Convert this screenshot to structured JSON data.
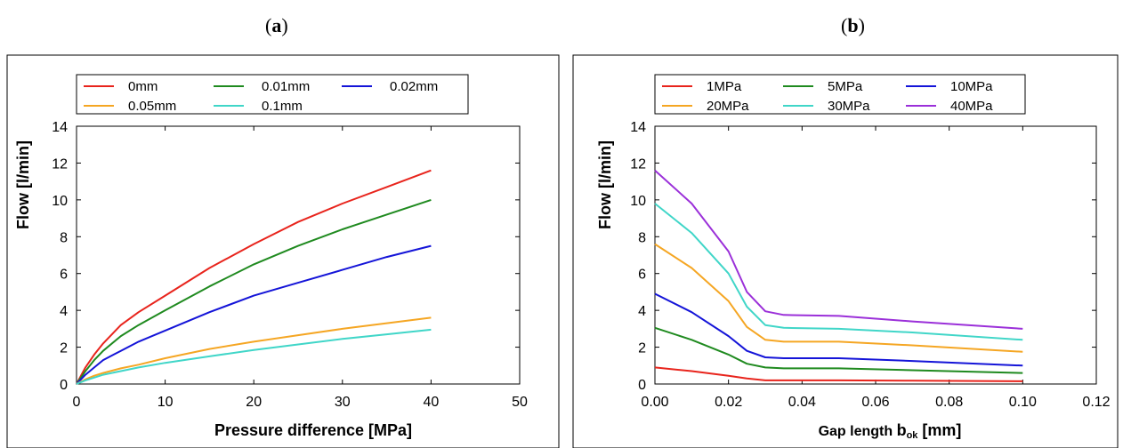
{
  "panels": {
    "a_open": "(",
    "a_letter": "a",
    "a_close": ")",
    "b_open": "(",
    "b_letter": "b",
    "b_close": ")"
  },
  "chart_data": [
    {
      "type": "line",
      "xlabel": "Pressure difference   [MPa]",
      "ylabel": "Flow   [l/min]",
      "xlim": [
        0,
        50
      ],
      "ylim": [
        0,
        14
      ],
      "xticks": [
        "0",
        "10",
        "20",
        "30",
        "40",
        "50"
      ],
      "yticks": [
        "0",
        "2",
        "4",
        "6",
        "8",
        "10",
        "12",
        "14"
      ],
      "grid": false,
      "legend_placement": "top",
      "series": [
        {
          "name": "0mm",
          "color": "#e8241c",
          "x": [
            0,
            1,
            2,
            3,
            5,
            7,
            10,
            15,
            20,
            25,
            30,
            35,
            40
          ],
          "y": [
            0,
            0.9,
            1.6,
            2.2,
            3.2,
            3.9,
            4.8,
            6.3,
            7.6,
            8.8,
            9.8,
            10.7,
            11.6
          ]
        },
        {
          "name": "0.01mm",
          "color": "#1f8a1f",
          "x": [
            0,
            1,
            2,
            3,
            5,
            7,
            10,
            15,
            20,
            25,
            30,
            35,
            40
          ],
          "y": [
            0,
            0.7,
            1.3,
            1.8,
            2.6,
            3.2,
            4.0,
            5.3,
            6.5,
            7.5,
            8.4,
            9.2,
            10.0
          ]
        },
        {
          "name": "0.02mm",
          "color": "#1414d8",
          "x": [
            0,
            1,
            2,
            3,
            5,
            7,
            10,
            15,
            20,
            25,
            30,
            35,
            40
          ],
          "y": [
            0,
            0.5,
            0.9,
            1.3,
            1.8,
            2.3,
            2.9,
            3.9,
            4.8,
            5.5,
            6.2,
            6.9,
            7.5
          ]
        },
        {
          "name": "0.05mm",
          "color": "#f5a623",
          "x": [
            0,
            1,
            2,
            3,
            5,
            7,
            10,
            15,
            20,
            25,
            30,
            35,
            40
          ],
          "y": [
            0,
            0.25,
            0.45,
            0.6,
            0.85,
            1.05,
            1.4,
            1.9,
            2.3,
            2.65,
            3.0,
            3.3,
            3.6
          ]
        },
        {
          "name": "0.1mm",
          "color": "#40d6c8",
          "x": [
            0,
            1,
            2,
            3,
            5,
            7,
            10,
            15,
            20,
            25,
            30,
            35,
            40
          ],
          "y": [
            0,
            0.2,
            0.35,
            0.5,
            0.7,
            0.9,
            1.15,
            1.5,
            1.85,
            2.15,
            2.45,
            2.7,
            2.95
          ]
        }
      ]
    },
    {
      "type": "line",
      "xlabel_main": "Gap length",
      "xlabel_b": "b",
      "xlabel_sub": "ok",
      "xlabel_unit": "[mm]",
      "ylabel": "Flow   [l/min]",
      "xlim": [
        0,
        0.12
      ],
      "ylim": [
        0,
        14
      ],
      "xticks": [
        "0.00",
        "0.02",
        "0.04",
        "0.06",
        "0.08",
        "0.10",
        "0.12"
      ],
      "yticks": [
        "0",
        "2",
        "4",
        "6",
        "8",
        "10",
        "12",
        "14"
      ],
      "grid": false,
      "legend_placement": "top",
      "series": [
        {
          "name": "1MPa",
          "color": "#e8241c",
          "x": [
            0,
            0.01,
            0.02,
            0.025,
            0.03,
            0.035,
            0.05,
            0.07,
            0.1
          ],
          "y": [
            0.9,
            0.7,
            0.45,
            0.3,
            0.2,
            0.2,
            0.2,
            0.18,
            0.15
          ]
        },
        {
          "name": "5MPa",
          "color": "#1f8a1f",
          "x": [
            0,
            0.01,
            0.02,
            0.025,
            0.03,
            0.035,
            0.05,
            0.07,
            0.1
          ],
          "y": [
            3.05,
            2.4,
            1.6,
            1.1,
            0.9,
            0.85,
            0.85,
            0.75,
            0.6
          ]
        },
        {
          "name": "10MPa",
          "color": "#1414d8",
          "x": [
            0,
            0.01,
            0.02,
            0.025,
            0.03,
            0.035,
            0.05,
            0.07,
            0.1
          ],
          "y": [
            4.9,
            3.9,
            2.6,
            1.8,
            1.45,
            1.4,
            1.4,
            1.25,
            1.0
          ]
        },
        {
          "name": "20MPa",
          "color": "#f5a623",
          "x": [
            0,
            0.01,
            0.02,
            0.025,
            0.03,
            0.035,
            0.05,
            0.07,
            0.1
          ],
          "y": [
            7.6,
            6.3,
            4.5,
            3.1,
            2.4,
            2.3,
            2.3,
            2.1,
            1.75
          ]
        },
        {
          "name": "30MPa",
          "color": "#40d6c8",
          "x": [
            0,
            0.01,
            0.02,
            0.025,
            0.03,
            0.035,
            0.05,
            0.07,
            0.1
          ],
          "y": [
            9.8,
            8.2,
            6.0,
            4.2,
            3.2,
            3.05,
            3.0,
            2.8,
            2.4
          ]
        },
        {
          "name": "40MPa",
          "color": "#9b30d9",
          "x": [
            0,
            0.01,
            0.02,
            0.025,
            0.03,
            0.035,
            0.05,
            0.07,
            0.1
          ],
          "y": [
            11.6,
            9.8,
            7.2,
            5.0,
            3.95,
            3.75,
            3.7,
            3.4,
            3.0
          ]
        }
      ]
    }
  ]
}
